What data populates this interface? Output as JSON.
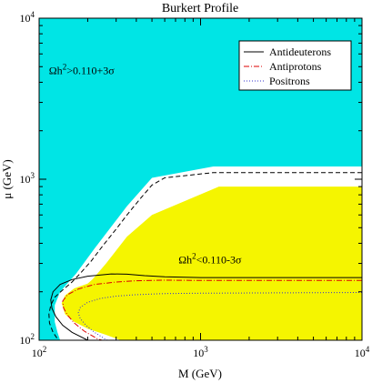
{
  "chart_data": {
    "type": "area",
    "title": "Burkert Profile",
    "xlabel": "M (GeV)",
    "ylabel": "μ (GeV)",
    "xscale": "log",
    "yscale": "log",
    "xlim": [
      100,
      10000
    ],
    "ylim": [
      100,
      10000
    ],
    "xticks": [
      {
        "base": "10",
        "exp": "2",
        "value": 100
      },
      {
        "base": "10",
        "exp": "3",
        "value": 1000
      },
      {
        "base": "10",
        "exp": "4",
        "value": 10000
      }
    ],
    "yticks": [
      {
        "base": "10",
        "exp": "2",
        "value": 100
      },
      {
        "base": "10",
        "exp": "3",
        "value": 1000
      },
      {
        "base": "10",
        "exp": "4",
        "value": 10000
      }
    ],
    "grid": false,
    "legend_position": "top-right",
    "colors": {
      "excluded_region": "#00e5e5",
      "allowed_region": "#f5f500",
      "antideuterons": "#000000",
      "antiprotons": "#dd0000",
      "positrons": "#3333cc"
    },
    "annotations": [
      {
        "text_main": "Ωh",
        "text_sup": "2",
        "text_rest": ">0.110+3σ",
        "x": 115,
        "y": 4500
      },
      {
        "text_main": "Ωh",
        "text_sup": "2",
        "text_rest": "<0.110-3σ",
        "x": 730,
        "y": 300
      }
    ],
    "regions": [
      {
        "name": "overdense",
        "color_key": "excluded_region",
        "points": [
          [
            100,
            10000
          ],
          [
            10000,
            10000
          ],
          [
            10000,
            1200
          ],
          [
            1200,
            1200
          ],
          [
            500,
            1020
          ],
          [
            350,
            680
          ],
          [
            220,
            370
          ],
          [
            170,
            260
          ],
          [
            135,
            200
          ],
          [
            125,
            165
          ],
          [
            125,
            130
          ],
          [
            130,
            112
          ],
          [
            135,
            100
          ],
          [
            100,
            100
          ]
        ]
      },
      {
        "name": "underdense",
        "color_key": "allowed_region",
        "points": [
          [
            10000,
            900
          ],
          [
            1300,
            900
          ],
          [
            500,
            600
          ],
          [
            350,
            440
          ],
          [
            260,
            300
          ],
          [
            215,
            240
          ],
          [
            200,
            225
          ],
          [
            165,
            210
          ],
          [
            145,
            190
          ],
          [
            138,
            170
          ],
          [
            145,
            145
          ],
          [
            165,
            130
          ],
          [
            200,
            118
          ],
          [
            260,
            108
          ],
          [
            320,
            100
          ],
          [
            10000,
            100
          ]
        ]
      }
    ],
    "series": [
      {
        "name": "Antideuterons",
        "color_key": "antideuterons",
        "style": "solid",
        "points": [
          [
            10000,
            245
          ],
          [
            3000,
            245
          ],
          [
            1000,
            245
          ],
          [
            600,
            248
          ],
          [
            450,
            252
          ],
          [
            350,
            257
          ],
          [
            280,
            258
          ],
          [
            200,
            250
          ],
          [
            160,
            238
          ],
          [
            135,
            222
          ],
          [
            122,
            200
          ],
          [
            118,
            178
          ],
          [
            120,
            158
          ],
          [
            127,
            140
          ],
          [
            140,
            124
          ],
          [
            160,
            112
          ],
          [
            200,
            100
          ]
        ]
      },
      {
        "name": "Antiprotons",
        "color_key": "antiprotons",
        "style": "dashdot",
        "points": [
          [
            10000,
            235
          ],
          [
            3000,
            235
          ],
          [
            1000,
            235
          ],
          [
            600,
            236
          ],
          [
            400,
            234
          ],
          [
            300,
            230
          ],
          [
            220,
            222
          ],
          [
            175,
            208
          ],
          [
            150,
            192
          ],
          [
            140,
            175
          ],
          [
            142,
            158
          ],
          [
            150,
            143
          ],
          [
            165,
            128
          ],
          [
            190,
            114
          ],
          [
            230,
            102
          ],
          [
            245,
            100
          ]
        ]
      },
      {
        "name": "Positrons",
        "color_key": "positrons",
        "style": "dotted",
        "points": [
          [
            10000,
            198
          ],
          [
            3000,
            197
          ],
          [
            1000,
            196
          ],
          [
            600,
            195
          ],
          [
            400,
            192
          ],
          [
            300,
            188
          ],
          [
            240,
            182
          ],
          [
            200,
            172
          ],
          [
            180,
            160
          ],
          [
            175,
            148
          ],
          [
            180,
            136
          ],
          [
            195,
            124
          ],
          [
            220,
            112
          ],
          [
            255,
            102
          ],
          [
            265,
            100
          ]
        ]
      },
      {
        "name": "",
        "color_key": "antideuterons",
        "style": "dashed",
        "legend": false,
        "points": [
          [
            10000,
            1100
          ],
          [
            1200,
            1100
          ],
          [
            600,
            1020
          ],
          [
            500,
            920
          ],
          [
            420,
            750
          ],
          [
            350,
            600
          ],
          [
            300,
            490
          ],
          [
            250,
            390
          ],
          [
            210,
            310
          ],
          [
            180,
            260
          ],
          [
            160,
            230
          ],
          [
            140,
            205
          ],
          [
            125,
            185
          ],
          [
            118,
            165
          ],
          [
            115,
            145
          ],
          [
            116,
            128
          ],
          [
            122,
            112
          ],
          [
            130,
            102
          ],
          [
            132,
            100
          ]
        ]
      }
    ]
  }
}
